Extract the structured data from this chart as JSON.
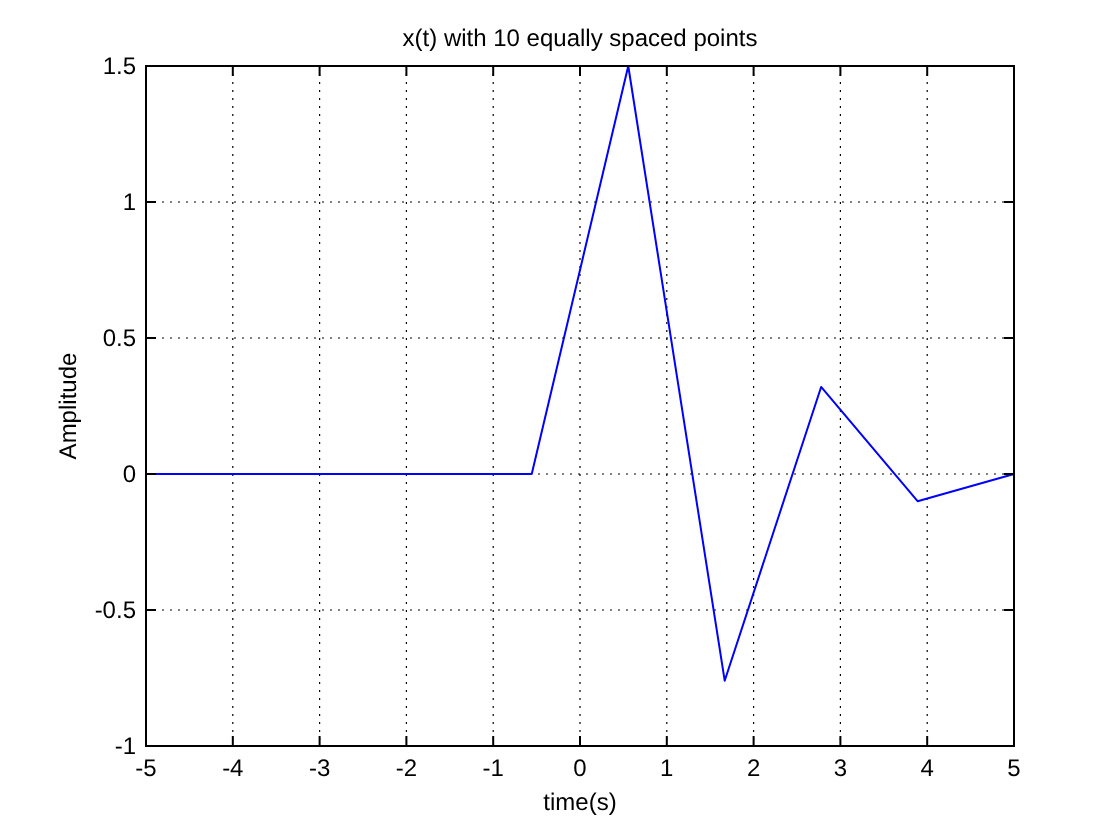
{
  "chart_data": {
    "type": "line",
    "title": "x(t) with 10 equally spaced points",
    "xlabel": "time(s)",
    "ylabel": "Amplitude",
    "x": [
      -5,
      -3.889,
      -2.778,
      -1.667,
      -0.556,
      0.556,
      1.667,
      2.778,
      3.889,
      5
    ],
    "series": [
      {
        "color": "#0000ff",
        "values": [
          0,
          0,
          0,
          0,
          0,
          1.5,
          -0.76,
          0.32,
          -0.1,
          0
        ]
      }
    ],
    "xlim": [
      -5,
      5
    ],
    "xticks": [
      -5,
      -4,
      -3,
      -2,
      -1,
      0,
      1,
      2,
      3,
      4,
      5
    ],
    "ylim": [
      -1,
      1.5
    ],
    "yticks": [
      -1,
      -0.5,
      0,
      0.5,
      1,
      1.5
    ],
    "grid": true,
    "line_style": "solid",
    "marker": "none"
  }
}
